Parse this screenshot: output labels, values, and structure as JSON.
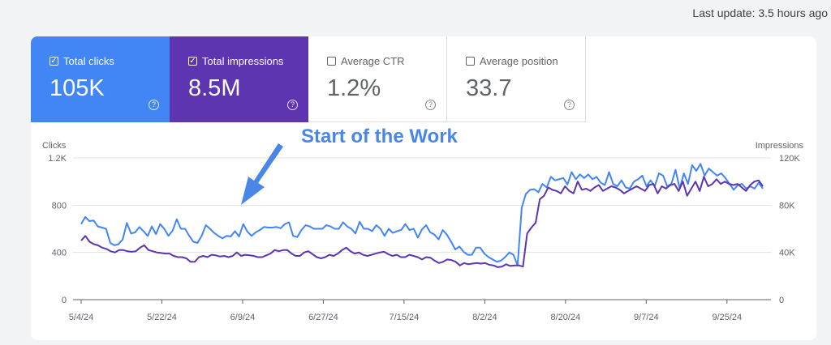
{
  "last_update": "Last update: 3.5 hours ago",
  "metrics": [
    {
      "label": "Total clicks",
      "value": "105K",
      "checked": true,
      "color": "#4285f4"
    },
    {
      "label": "Total impressions",
      "value": "8.5M",
      "checked": true,
      "color": "#5e35b1"
    },
    {
      "label": "Average CTR",
      "value": "1.2%",
      "checked": false
    },
    {
      "label": "Average position",
      "value": "33.7",
      "checked": false
    }
  ],
  "annotation": "Start of the Work",
  "chart_data": {
    "type": "line",
    "y_left_label": "Clicks",
    "y_right_label": "Impressions",
    "y_left_ticks": [
      "0",
      "400",
      "800",
      "1.2K"
    ],
    "y_right_ticks": [
      "0",
      "40K",
      "80K",
      "120K"
    ],
    "ylim_left": [
      0,
      1200
    ],
    "ylim_right": [
      0,
      120000
    ],
    "x_ticks": [
      "5/4/24",
      "5/22/24",
      "6/9/24",
      "6/27/24",
      "7/15/24",
      "8/2/24",
      "8/20/24",
      "9/7/24",
      "9/25/24"
    ],
    "x_range": [
      "2024-05-04",
      "2024-10-03"
    ],
    "grid": true,
    "series": [
      {
        "name": "Clicks",
        "axis": "left",
        "color": "#4285f4",
        "values": [
          640,
          700,
          665,
          670,
          620,
          610,
          600,
          480,
          460,
          470,
          510,
          650,
          560,
          570,
          615,
          580,
          540,
          620,
          555,
          640,
          600,
          540,
          585,
          680,
          600,
          600,
          540,
          490,
          480,
          540,
          630,
          600,
          565,
          540,
          520,
          540,
          535,
          580,
          535,
          640,
          575,
          540,
          570,
          590,
          615,
          610,
          610,
          615,
          605,
          640,
          655,
          540,
          530,
          590,
          630,
          620,
          600,
          600,
          600,
          630,
          620,
          600,
          600,
          655,
          620,
          600,
          560,
          660,
          600,
          600,
          580,
          630,
          600,
          540,
          600,
          565,
          580,
          590,
          640,
          590,
          600,
          525,
          595,
          630,
          570,
          550,
          510,
          590,
          550,
          490,
          425,
          450,
          405,
          380,
          380,
          440,
          440,
          390,
          360,
          340,
          320,
          330,
          360,
          400,
          380,
          290,
          780,
          895,
          930,
          935,
          910,
          980,
          950,
          1040,
          1010,
          1020,
          1030,
          975,
          1080,
          1020,
          1060,
          1030,
          1060,
          1020,
          1040,
          990,
          970,
          1080,
          980,
          960,
          1010,
          950,
          940,
          1000,
          1020,
          1050,
          960,
          1010,
          960,
          1070,
          1050,
          960,
          980,
          1100,
          940,
          1070,
          980,
          1140,
          1090,
          1150,
          1050,
          1110,
          1080,
          1050,
          1070,
          1030,
          980,
          930,
          970,
          980,
          940,
          960,
          940,
          990,
          940
        ]
      },
      {
        "name": "Impressions",
        "axis": "right",
        "color": "#5e35b1",
        "values": [
          50000,
          54000,
          49000,
          47000,
          46000,
          44000,
          43000,
          41000,
          40000,
          42000,
          42000,
          41000,
          40500,
          41000,
          44000,
          46000,
          42000,
          41000,
          40000,
          39500,
          39000,
          39000,
          37000,
          36000,
          36000,
          35000,
          32000,
          32000,
          36000,
          37000,
          36000,
          38000,
          37500,
          36500,
          37000,
          36000,
          37000,
          40000,
          37000,
          38000,
          37500,
          37000,
          36000,
          36000,
          37500,
          39000,
          42000,
          41000,
          42000,
          42000,
          39000,
          37000,
          37000,
          40000,
          41000,
          38500,
          36000,
          35000,
          36000,
          38000,
          37000,
          39000,
          42000,
          44000,
          41000,
          39000,
          40000,
          38000,
          37000,
          38000,
          39000,
          40000,
          40500,
          38500,
          37000,
          38000,
          36000,
          36000,
          38000,
          37000,
          36000,
          34000,
          36000,
          35500,
          33000,
          31000,
          32000,
          34000,
          33500,
          32000,
          29000,
          31000,
          30000,
          30500,
          31000,
          30500,
          31000,
          29500,
          29000,
          27500,
          28000,
          30000,
          28500,
          29000,
          29000,
          28000,
          56000,
          61000,
          65000,
          85000,
          88000,
          95000,
          93000,
          92000,
          90000,
          96000,
          92000,
          90000,
          100000,
          93000,
          94000,
          92000,
          95000,
          97000,
          92000,
          94000,
          96000,
          95000,
          93000,
          90000,
          92000,
          94000,
          96000,
          94000,
          92000,
          97000,
          98000,
          90000,
          96000,
          94000,
          97000,
          98000,
          92000,
          100000,
          88000,
          94000,
          100000,
          92000,
          104000,
          96000,
          98000,
          102000,
          98000,
          100000,
          98000,
          97000,
          98000,
          95000,
          92000,
          97000,
          100000,
          101000,
          96000
        ]
      }
    ]
  }
}
